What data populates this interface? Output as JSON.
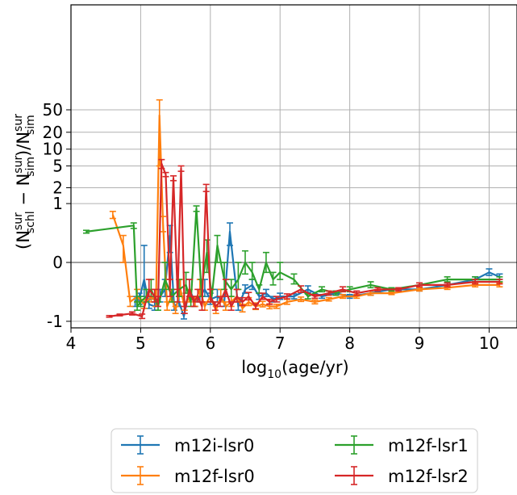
{
  "chart_data": {
    "type": "line",
    "xlabel_base": "log",
    "xlabel_sub": "10",
    "xlabel_rest": "(age/yr)",
    "ylabel_text": "(N_schl^sur − N_sim^sur)/N_sim^sur",
    "ylabel_parts": {
      "open": "(N",
      "sup1": "sur",
      "sub1": "schl",
      "minus": " − N",
      "sup2": "sur",
      "sub2": "sim",
      "mid": ")/N",
      "sup3": "sur",
      "sub3": "sim"
    },
    "xlim": [
      4,
      10.4
    ],
    "x_ticks": [
      4,
      5,
      6,
      7,
      8,
      9,
      10
    ],
    "x_tick_labels": [
      "4",
      "5",
      "6",
      "7",
      "8",
      "9",
      "10"
    ],
    "y_scale": "symlog",
    "ylim": [
      -1.3,
      60
    ],
    "y_ticks": [
      -1,
      0,
      1,
      2,
      5,
      10,
      20,
      50
    ],
    "y_tick_labels": [
      "-1",
      "0",
      "1",
      "2",
      "5",
      "10",
      "20",
      "50"
    ],
    "grid": true,
    "reference_line_y": 0,
    "legend_position": "below plot, two columns",
    "series": [
      {
        "name": "m12i-lsr0",
        "color": "#1f77b4",
        "x": [
          4.92,
          4.98,
          5.05,
          5.12,
          5.2,
          5.28,
          5.35,
          5.42,
          5.48,
          5.55,
          5.62,
          5.7,
          5.78,
          5.85,
          5.92,
          6.0,
          6.1,
          6.2,
          6.28,
          6.4,
          6.5,
          6.6,
          6.7,
          6.8,
          6.9,
          7.0,
          7.2,
          7.4,
          7.6,
          7.8,
          8.0,
          8.3,
          8.6,
          9.0,
          9.4,
          9.8,
          10.0,
          10.15
        ],
        "y": [
          -0.4,
          -0.35,
          -0.1,
          -0.45,
          -0.5,
          -0.3,
          -0.2,
          0.2,
          -0.5,
          -0.4,
          -0.8,
          -0.2,
          -0.4,
          -0.3,
          -0.2,
          -0.35,
          -0.3,
          -0.4,
          0.25,
          -0.5,
          -0.2,
          -0.15,
          -0.3,
          -0.25,
          -0.35,
          -0.3,
          -0.3,
          -0.2,
          -0.3,
          -0.25,
          -0.3,
          -0.25,
          -0.2,
          -0.2,
          -0.15,
          -0.1,
          -0.05,
          -0.08
        ],
        "err": [
          0.1,
          0.1,
          0.2,
          0.1,
          0.1,
          0.1,
          0.1,
          0.15,
          0.1,
          0.1,
          0.1,
          0.1,
          0.1,
          0.1,
          0.1,
          0.1,
          0.1,
          0.1,
          0.15,
          0.1,
          0.05,
          0.05,
          0.05,
          0.05,
          0.05,
          0.05,
          0.04,
          0.04,
          0.03,
          0.03,
          0.03,
          0.03,
          0.02,
          0.02,
          0.02,
          0.02,
          0.02,
          0.02
        ]
      },
      {
        "name": "m12f-lsr0",
        "color": "#ff7f0e",
        "x": [
          4.6,
          4.75,
          4.85,
          4.95,
          5.05,
          5.15,
          5.22,
          5.27,
          5.32,
          5.38,
          5.44,
          5.5,
          5.57,
          5.63,
          5.7,
          5.78,
          5.85,
          5.92,
          6.0,
          6.08,
          6.15,
          6.22,
          6.3,
          6.38,
          6.46,
          6.55,
          6.65,
          6.75,
          6.85,
          6.95,
          7.1,
          7.3,
          7.5,
          7.7,
          7.9,
          8.1,
          8.3,
          8.6,
          9.0,
          9.4,
          9.8,
          10.15
        ],
        "y": [
          0.6,
          0.1,
          -0.4,
          -0.3,
          -0.45,
          -0.3,
          -0.4,
          40,
          0.4,
          -0.5,
          -0.3,
          -0.6,
          -0.2,
          -0.5,
          -0.3,
          -0.4,
          -0.2,
          -0.5,
          -0.3,
          -0.6,
          -0.3,
          -0.5,
          -0.4,
          -0.3,
          -0.55,
          -0.4,
          -0.5,
          -0.45,
          -0.5,
          -0.5,
          -0.4,
          -0.35,
          -0.4,
          -0.35,
          -0.3,
          -0.3,
          -0.25,
          -0.25,
          -0.2,
          -0.18,
          -0.15,
          -0.15
        ],
        "err": [
          0.1,
          0.1,
          0.1,
          0.1,
          0.1,
          0.1,
          0.1,
          35,
          0.15,
          0.1,
          0.1,
          0.1,
          0.1,
          0.1,
          0.1,
          0.1,
          0.1,
          0.1,
          0.1,
          0.1,
          0.1,
          0.1,
          0.1,
          0.1,
          0.1,
          0.08,
          0.08,
          0.06,
          0.06,
          0.05,
          0.05,
          0.04,
          0.04,
          0.03,
          0.03,
          0.03,
          0.03,
          0.02,
          0.02,
          0.02,
          0.02,
          0.02
        ]
      },
      {
        "name": "m12f-lsr1",
        "color": "#2ca02c",
        "x": [
          4.22,
          4.9,
          4.95,
          5.0,
          5.08,
          5.15,
          5.25,
          5.35,
          5.45,
          5.55,
          5.65,
          5.72,
          5.8,
          5.87,
          5.95,
          6.02,
          6.1,
          6.2,
          6.3,
          6.4,
          6.5,
          6.6,
          6.7,
          6.8,
          6.9,
          7.0,
          7.2,
          7.4,
          7.6,
          7.8,
          8.0,
          8.3,
          8.6,
          9.0,
          9.4,
          9.8,
          10.15
        ],
        "y": [
          0.25,
          0.35,
          -0.5,
          -0.4,
          -0.3,
          -0.2,
          -0.5,
          -0.1,
          -0.3,
          -0.2,
          -0.15,
          -0.4,
          0.8,
          -0.2,
          0.05,
          -0.3,
          0.1,
          -0.1,
          -0.2,
          -0.1,
          0.0,
          -0.05,
          -0.2,
          0.0,
          -0.1,
          -0.05,
          -0.1,
          -0.3,
          -0.2,
          -0.25,
          -0.2,
          -0.15,
          -0.2,
          -0.15,
          -0.1,
          -0.1,
          -0.1
        ],
        "err": [
          0.02,
          0.05,
          0.1,
          0.1,
          0.1,
          0.1,
          0.1,
          0.1,
          0.1,
          0.1,
          0.1,
          0.1,
          0.1,
          0.1,
          0.1,
          0.1,
          0.1,
          0.1,
          0.1,
          0.1,
          0.06,
          0.05,
          0.05,
          0.05,
          0.05,
          0.05,
          0.04,
          0.04,
          0.03,
          0.03,
          0.03,
          0.03,
          0.02,
          0.02,
          0.02,
          0.02,
          0.02
        ]
      },
      {
        "name": "m12f-lsr2",
        "color": "#d62728",
        "x": [
          4.55,
          4.7,
          4.88,
          5.02,
          5.12,
          5.2,
          5.25,
          5.3,
          5.36,
          5.42,
          5.47,
          5.53,
          5.58,
          5.63,
          5.7,
          5.76,
          5.82,
          5.88,
          5.94,
          6.0,
          6.07,
          6.14,
          6.22,
          6.3,
          6.38,
          6.46,
          6.55,
          6.65,
          6.75,
          6.85,
          6.95,
          7.1,
          7.3,
          7.5,
          7.7,
          7.9,
          8.1,
          8.4,
          8.7,
          9.0,
          9.4,
          9.8,
          10.15
        ],
        "y": [
          -0.8,
          -0.75,
          -0.7,
          -0.8,
          -0.2,
          -0.3,
          -0.4,
          5.5,
          3.5,
          -0.2,
          3.0,
          -0.3,
          4.5,
          -0.6,
          -0.2,
          -0.4,
          -0.3,
          -0.5,
          2.0,
          -0.3,
          -0.5,
          -0.4,
          -0.2,
          -0.5,
          -0.3,
          -0.4,
          -0.3,
          -0.5,
          -0.3,
          -0.4,
          -0.35,
          -0.3,
          -0.2,
          -0.3,
          -0.25,
          -0.2,
          -0.25,
          -0.2,
          -0.2,
          -0.15,
          -0.15,
          -0.12,
          -0.12
        ],
        "err": [
          0.03,
          0.03,
          0.05,
          0.08,
          0.1,
          0.1,
          0.1,
          1.0,
          0.3,
          0.1,
          0.3,
          0.1,
          0.5,
          0.1,
          0.1,
          0.1,
          0.1,
          0.1,
          0.3,
          0.1,
          0.1,
          0.1,
          0.1,
          0.1,
          0.1,
          0.08,
          0.06,
          0.06,
          0.05,
          0.05,
          0.05,
          0.04,
          0.04,
          0.03,
          0.03,
          0.03,
          0.03,
          0.02,
          0.02,
          0.02,
          0.02,
          0.02,
          0.02
        ]
      }
    ]
  }
}
